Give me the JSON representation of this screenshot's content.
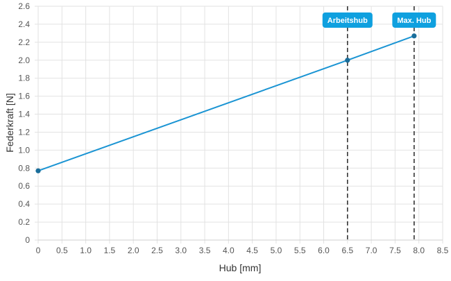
{
  "chart_data": {
    "type": "line",
    "title": "",
    "xlabel": "Hub [mm]",
    "ylabel": "Federkraft [N]",
    "xlim": [
      0,
      8.5
    ],
    "ylim": [
      0,
      2.6
    ],
    "x_ticks": [
      0,
      0.5,
      1.0,
      1.5,
      2.0,
      2.5,
      3.0,
      3.5,
      4.0,
      4.5,
      5.0,
      5.5,
      6.0,
      6.5,
      7.0,
      7.5,
      8.0,
      8.5
    ],
    "x_tick_labels": [
      "0",
      "0.5",
      "1.0",
      "1.5",
      "2.0",
      "2.5",
      "3.0",
      "3.5",
      "4.0",
      "4.5",
      "5.0",
      "5.5",
      "6.0",
      "6.5",
      "7.0",
      "7.5",
      "8.0",
      "8.5"
    ],
    "y_ticks": [
      0,
      0.2,
      0.4,
      0.6,
      0.8,
      1.0,
      1.2,
      1.4,
      1.6,
      1.8,
      2.0,
      2.2,
      2.4,
      2.6
    ],
    "y_tick_labels": [
      "0",
      "0.2",
      "0.4",
      "0.6",
      "0.8",
      "1.0",
      "1.2",
      "1.4",
      "1.6",
      "1.8",
      "2.0",
      "2.2",
      "2.4",
      "2.6"
    ],
    "grid": true,
    "series": [
      {
        "x": [
          0,
          6.5,
          7.9
        ],
        "y": [
          0.77,
          2.0,
          2.27
        ],
        "color": "#1a94d3"
      }
    ],
    "annotations": [
      {
        "label": "Arbeitshub",
        "x": 6.5
      },
      {
        "label": "Max. Hub",
        "x": 7.9
      }
    ],
    "colors": {
      "line": "#1a94d3",
      "point": "#1a6d9a",
      "badge": "#0fa0df",
      "badge_text": "#ffffff",
      "ref_line": "#333333",
      "grid": "#e2e2e2",
      "axis_text": "#555555"
    }
  }
}
